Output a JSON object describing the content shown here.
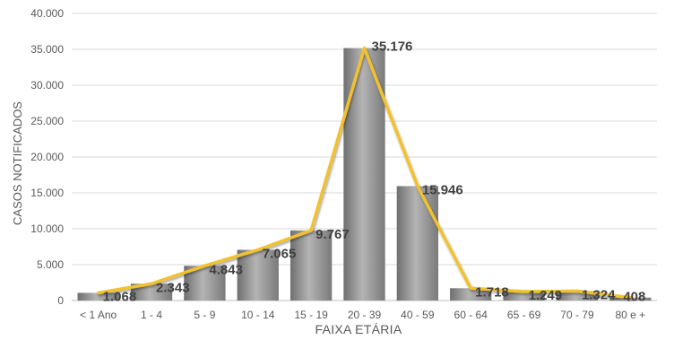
{
  "chart_data": {
    "type": "bar",
    "title": "",
    "xlabel": "FAIXA ETÁRIA",
    "ylabel": "CASOS NOTIFICADOS",
    "ylim": [
      0,
      40000
    ],
    "yticks": [
      0,
      5000,
      10000,
      15000,
      20000,
      25000,
      30000,
      35000,
      40000
    ],
    "ytick_labels": [
      "0",
      "5.000",
      "10.000",
      "15.000",
      "20.000",
      "25.000",
      "30.000",
      "35.000",
      "40.000"
    ],
    "grid": true,
    "legend": "none",
    "categories": [
      "< 1 Ano",
      "1 - 4",
      "5 - 9",
      "10 - 14",
      "15 - 19",
      "20 - 39",
      "40 - 59",
      "60 - 64",
      "65 - 69",
      "70 - 79",
      "80 e +"
    ],
    "series": [
      {
        "type": "bar",
        "values": [
          1068,
          2343,
          4843,
          7065,
          9767,
          35176,
          15946,
          1718,
          1249,
          1324,
          408
        ],
        "color": "#8c8c8c"
      },
      {
        "type": "line",
        "values": [
          1068,
          2343,
          4843,
          7065,
          9767,
          35176,
          15946,
          1718,
          1249,
          1324,
          408
        ],
        "color": "#f2c12e"
      }
    ],
    "data_labels": [
      "1.068",
      "2.343",
      "4.843",
      "7.065",
      "9.767",
      "35.176",
      "15.946",
      "1.718",
      "1.249",
      "1.324",
      "408"
    ]
  }
}
